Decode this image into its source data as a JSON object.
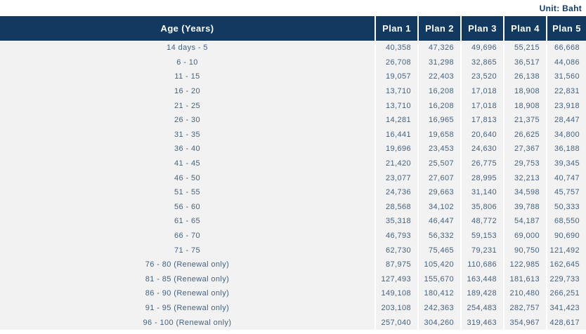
{
  "unit_label": "Unit: Baht",
  "colors": {
    "header_bg": "#12395f",
    "header_text": "#ffffff",
    "body_bg": "#f2f2f3",
    "body_text": "#44617f",
    "unit_text": "#0f3d6b",
    "separator": "#ffffff"
  },
  "table": {
    "age_header": "Age (Years)",
    "plan_headers": [
      "Plan 1",
      "Plan 2",
      "Plan 3",
      "Plan 4",
      "Plan 5"
    ],
    "rows": [
      {
        "age": "14 days - 5",
        "prices": [
          "40,358",
          "47,326",
          "49,696",
          "55,215",
          "66,668"
        ]
      },
      {
        "age": "6 - 10",
        "prices": [
          "26,708",
          "31,298",
          "32,865",
          "36,517",
          "44,086"
        ]
      },
      {
        "age": "11 - 15",
        "prices": [
          "19,057",
          "22,403",
          "23,520",
          "26,138",
          "31,560"
        ]
      },
      {
        "age": "16 - 20",
        "prices": [
          "13,710",
          "16,208",
          "17,018",
          "18,908",
          "22,831"
        ]
      },
      {
        "age": "21 - 25",
        "prices": [
          "13,710",
          "16,208",
          "17,018",
          "18,908",
          "23,918"
        ]
      },
      {
        "age": "26 - 30",
        "prices": [
          "14,281",
          "16,965",
          "17,813",
          "21,375",
          "28,447"
        ]
      },
      {
        "age": "31 - 35",
        "prices": [
          "16,441",
          "19,658",
          "20,640",
          "26,625",
          "34,800"
        ]
      },
      {
        "age": "36 - 40",
        "prices": [
          "19,696",
          "23,453",
          "24,630",
          "27,367",
          "36,188"
        ]
      },
      {
        "age": "41 - 45",
        "prices": [
          "21,420",
          "25,507",
          "26,775",
          "29,753",
          "39,345"
        ]
      },
      {
        "age": "46 - 50",
        "prices": [
          "23,077",
          "27,607",
          "28,995",
          "32,213",
          "40,747"
        ]
      },
      {
        "age": "51 - 55",
        "prices": [
          "24,736",
          "29,663",
          "31,140",
          "34,598",
          "45,757"
        ]
      },
      {
        "age": "56 - 60",
        "prices": [
          "28,568",
          "34,102",
          "35,806",
          "39,788",
          "50,333"
        ]
      },
      {
        "age": "61 - 65",
        "prices": [
          "35,318",
          "46,447",
          "48,772",
          "54,187",
          "68,550"
        ]
      },
      {
        "age": "66 - 70",
        "prices": [
          "46,793",
          "56,332",
          "59,153",
          "69,000",
          "90,690"
        ]
      },
      {
        "age": "71 - 75",
        "prices": [
          "62,730",
          "75,465",
          "79,231",
          "90,750",
          "121,492"
        ]
      },
      {
        "age": "76 - 80 (Renewal only)",
        "prices": [
          "87,975",
          "105,420",
          "110,686",
          "122,985",
          "162,645"
        ]
      },
      {
        "age": "81 - 85 (Renewal only)",
        "prices": [
          "127,493",
          "155,670",
          "163,448",
          "181,613",
          "229,733"
        ]
      },
      {
        "age": "86 - 90 (Renewal only)",
        "prices": [
          "149,108",
          "180,412",
          "189,428",
          "210,480",
          "266,251"
        ]
      },
      {
        "age": "91 - 95 (Renewal only)",
        "prices": [
          "203,108",
          "242,363",
          "254,483",
          "282,757",
          "341,423"
        ]
      },
      {
        "age": "96 - 100 (Renewal only)",
        "prices": [
          "257,040",
          "304,260",
          "319,463",
          "354,967",
          "428,617"
        ]
      }
    ]
  }
}
